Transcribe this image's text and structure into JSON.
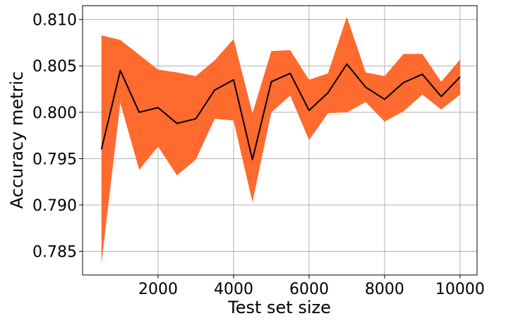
{
  "chart_data": {
    "type": "line",
    "title": "",
    "xlabel": "Test set size",
    "ylabel": "Accuracy metric",
    "xlim": [
      0,
      10450
    ],
    "ylim": [
      0.78245,
      0.8115
    ],
    "grid": true,
    "legend": "none",
    "x_ticks": [
      {
        "value": 2000,
        "label": "2000"
      },
      {
        "value": 4000,
        "label": "4000"
      },
      {
        "value": 6000,
        "label": "6000"
      },
      {
        "value": 8000,
        "label": "8000"
      },
      {
        "value": 10000,
        "label": "10000"
      }
    ],
    "y_ticks": [
      {
        "value": 0.785,
        "label": "0.785"
      },
      {
        "value": 0.79,
        "label": "0.790"
      },
      {
        "value": 0.795,
        "label": "0.795"
      },
      {
        "value": 0.8,
        "label": "0.800"
      },
      {
        "value": 0.805,
        "label": "0.805"
      },
      {
        "value": 0.81,
        "label": "0.810"
      }
    ],
    "x": [
      500,
      1000,
      1500,
      2000,
      2500,
      3000,
      3500,
      4000,
      4500,
      5000,
      5500,
      6000,
      6500,
      7000,
      7500,
      8000,
      8500,
      9000,
      9500,
      10000
    ],
    "series": [
      {
        "values": [
          0.796,
          0.8045,
          0.8,
          0.8005,
          0.7988,
          0.7993,
          0.8024,
          0.8035,
          0.7949,
          0.8033,
          0.8042,
          0.8002,
          0.8021,
          0.8052,
          0.8027,
          0.8014,
          0.8032,
          0.8041,
          0.8017,
          0.8038
        ],
        "upper": [
          0.8083,
          0.8078,
          0.8062,
          0.8046,
          0.8043,
          0.8039,
          0.8056,
          0.8079,
          0.7999,
          0.8066,
          0.8067,
          0.8035,
          0.8042,
          0.8103,
          0.8043,
          0.8039,
          0.8063,
          0.8063,
          0.8033,
          0.8057
        ],
        "lower": [
          0.7837,
          0.801,
          0.7938,
          0.7963,
          0.7932,
          0.7949,
          0.7993,
          0.7991,
          0.7903,
          0.8,
          0.8018,
          0.797,
          0.7999,
          0.8,
          0.8011,
          0.799,
          0.8001,
          0.8019,
          0.8003,
          0.8019
        ]
      }
    ],
    "colors": {
      "band": "#ff6a2e",
      "line": "#000000",
      "grid": "#b0b0b0",
      "axes": "#000000"
    }
  }
}
